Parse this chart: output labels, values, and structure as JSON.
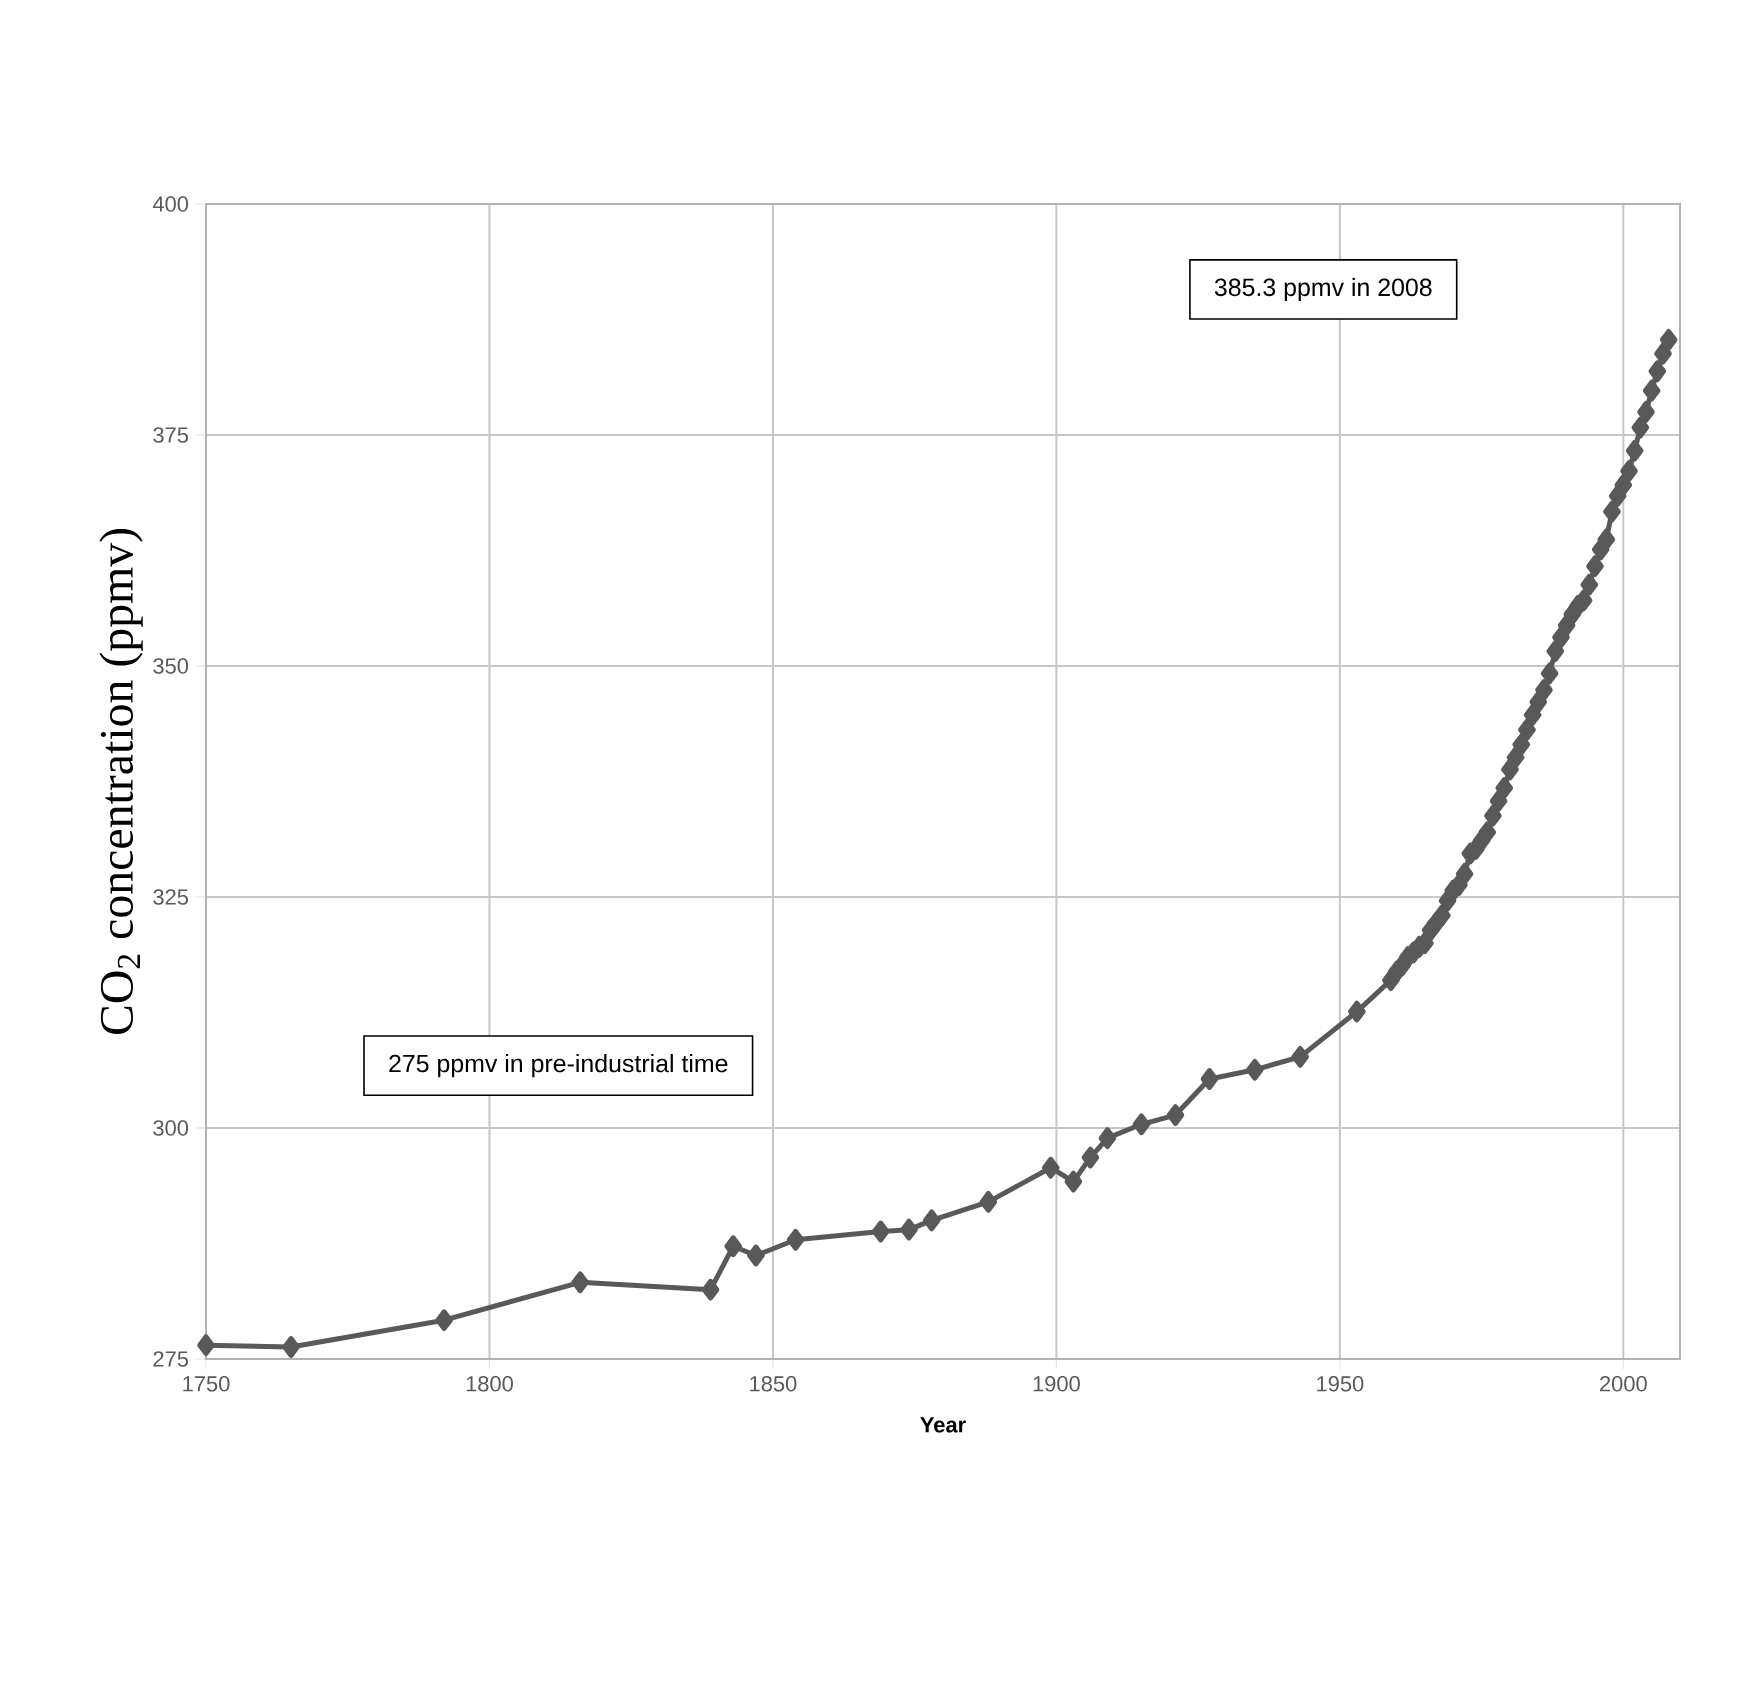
{
  "chart_data": {
    "type": "line",
    "xlabel": "Year",
    "ylabel": "CO$_{2}$ concentration (ppmv)",
    "annotations": [
      "385.3 ppmv in 2008",
      "275 ppmv in pre-industrial time"
    ],
    "x": [
      1750,
      1765,
      1792,
      1816,
      1839,
      1843,
      1847,
      1854,
      1869,
      1874,
      1878,
      1888,
      1899,
      1903,
      1906,
      1909,
      1915,
      1921,
      1927,
      1935,
      1943,
      1953,
      1959,
      1960,
      1961,
      1962,
      1963,
      1964,
      1965,
      1966,
      1967,
      1968,
      1969,
      1970,
      1971,
      1972,
      1973,
      1974,
      1975,
      1976,
      1977,
      1978,
      1979,
      1980,
      1981,
      1982,
      1983,
      1984,
      1985,
      1986,
      1987,
      1988,
      1989,
      1990,
      1991,
      1992,
      1993,
      1994,
      1995,
      1996,
      1997,
      1998,
      1999,
      2000,
      2001,
      2002,
      2003,
      2004,
      2005,
      2006,
      2007,
      2008
    ],
    "values": [
      276.5,
      276.3,
      279.2,
      283.3,
      282.5,
      287.2,
      286.2,
      287.9,
      288.8,
      289.0,
      290.0,
      292.0,
      295.7,
      294.2,
      296.8,
      298.9,
      300.4,
      301.4,
      305.3,
      306.3,
      307.7,
      312.6,
      316.0,
      316.9,
      317.6,
      318.5,
      319.0,
      319.6,
      320.0,
      321.4,
      322.2,
      323.0,
      324.6,
      325.7,
      326.3,
      327.5,
      329.7,
      330.2,
      331.1,
      332.0,
      333.8,
      335.4,
      336.8,
      338.8,
      340.1,
      341.5,
      343.1,
      344.7,
      346.1,
      347.4,
      349.2,
      351.6,
      353.1,
      354.4,
      355.6,
      356.5,
      357.1,
      358.8,
      360.8,
      362.6,
      363.7,
      366.7,
      368.4,
      369.6,
      371.1,
      373.3,
      375.8,
      377.5,
      379.8,
      381.9,
      383.8,
      385.3
    ],
    "color": "#595959",
    "marker": "diamond",
    "line_style": "solid",
    "xlim": [
      1750,
      2010
    ],
    "ylim": [
      275,
      400
    ],
    "xticks": [
      1750,
      1800,
      1850,
      1900,
      1950,
      2000
    ],
    "yticks": [
      275,
      300,
      325,
      350,
      375,
      400
    ],
    "grid": true
  }
}
